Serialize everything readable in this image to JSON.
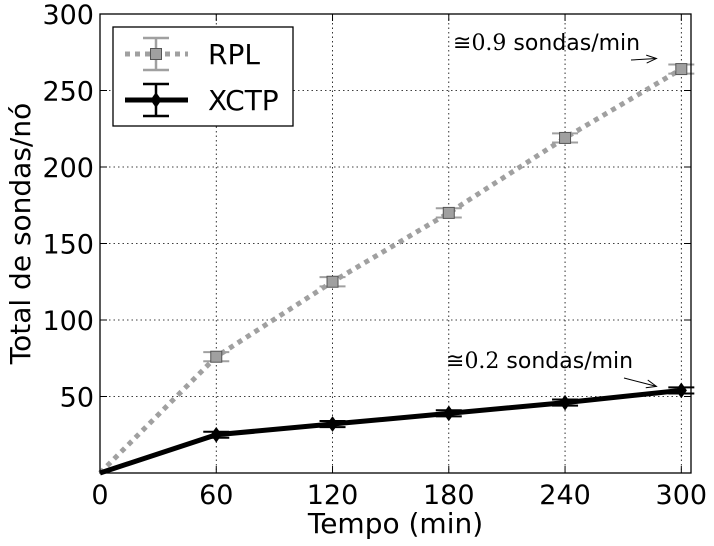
{
  "chart_data": {
    "type": "line",
    "xlabel": "Tempo (min)",
    "ylabel": "Total de sondas/nó",
    "xlim": [
      0,
      305
    ],
    "ylim": [
      0,
      300
    ],
    "x_ticks": [
      0,
      60,
      120,
      180,
      240,
      300
    ],
    "y_ticks": [
      50,
      100,
      150,
      200,
      250,
      300
    ],
    "grid": true,
    "legend_position": "upper-left",
    "series": [
      {
        "name": "RPL",
        "color": "#a0a0a0",
        "line_style": "dotted",
        "marker": "square",
        "x": [
          0,
          60,
          120,
          180,
          240,
          300
        ],
        "y": [
          0,
          76,
          125,
          170,
          219,
          264
        ],
        "error": [
          0,
          3,
          3,
          3,
          3,
          3
        ]
      },
      {
        "name": "XCTP",
        "color": "#000000",
        "line_style": "solid",
        "marker": "diamond",
        "x": [
          0,
          60,
          120,
          180,
          240,
          300
        ],
        "y": [
          0,
          25,
          32,
          39,
          46,
          54
        ],
        "error": [
          0,
          2,
          2,
          2,
          2,
          2
        ]
      }
    ],
    "annotations": [
      {
        "prefix": "≅",
        "value": "0.9",
        "text": "sondas/min",
        "target_x": 282,
        "target_y": 267
      },
      {
        "prefix": "≅",
        "value": "0.2",
        "text": "sondas/min",
        "target_x": 282,
        "target_y": 54
      }
    ]
  }
}
